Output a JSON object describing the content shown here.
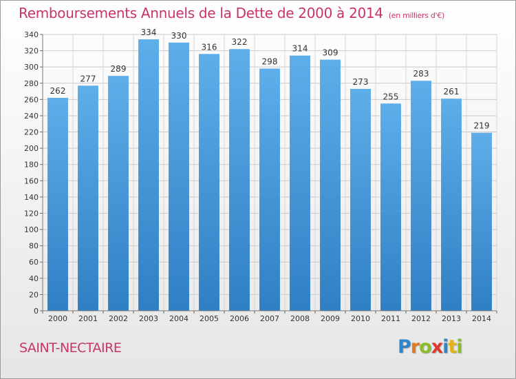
{
  "chart_data": {
    "type": "bar",
    "title": "Remboursements Annuels de la Dette de 2000 à 2014",
    "subtitle": "(en milliers d'€)",
    "xlabel": "",
    "ylabel": "",
    "categories": [
      "2000",
      "2001",
      "2002",
      "2003",
      "2004",
      "2005",
      "2006",
      "2007",
      "2008",
      "2009",
      "2010",
      "2011",
      "2012",
      "2013",
      "2014"
    ],
    "values": [
      262,
      277,
      289,
      334,
      330,
      316,
      322,
      298,
      314,
      309,
      273,
      255,
      283,
      261,
      219
    ],
    "ylim": [
      0,
      340
    ],
    "ytick_step": 20,
    "grid": true,
    "bar_color": "#4f9fe0"
  },
  "footer": {
    "town": "SAINT-NECTAIRE",
    "logo_letters": [
      {
        "ch": "P",
        "color": "#2e86c9"
      },
      {
        "ch": "r",
        "color": "#e07b1c"
      },
      {
        "ch": "o",
        "color": "#8cbc2a"
      },
      {
        "ch": "x",
        "color": "#d93a2b"
      },
      {
        "ch": "i",
        "color": "#2e86c9"
      },
      {
        "ch": "t",
        "color": "#e0b21c"
      },
      {
        "ch": "i",
        "color": "#8cbc2a"
      }
    ]
  }
}
